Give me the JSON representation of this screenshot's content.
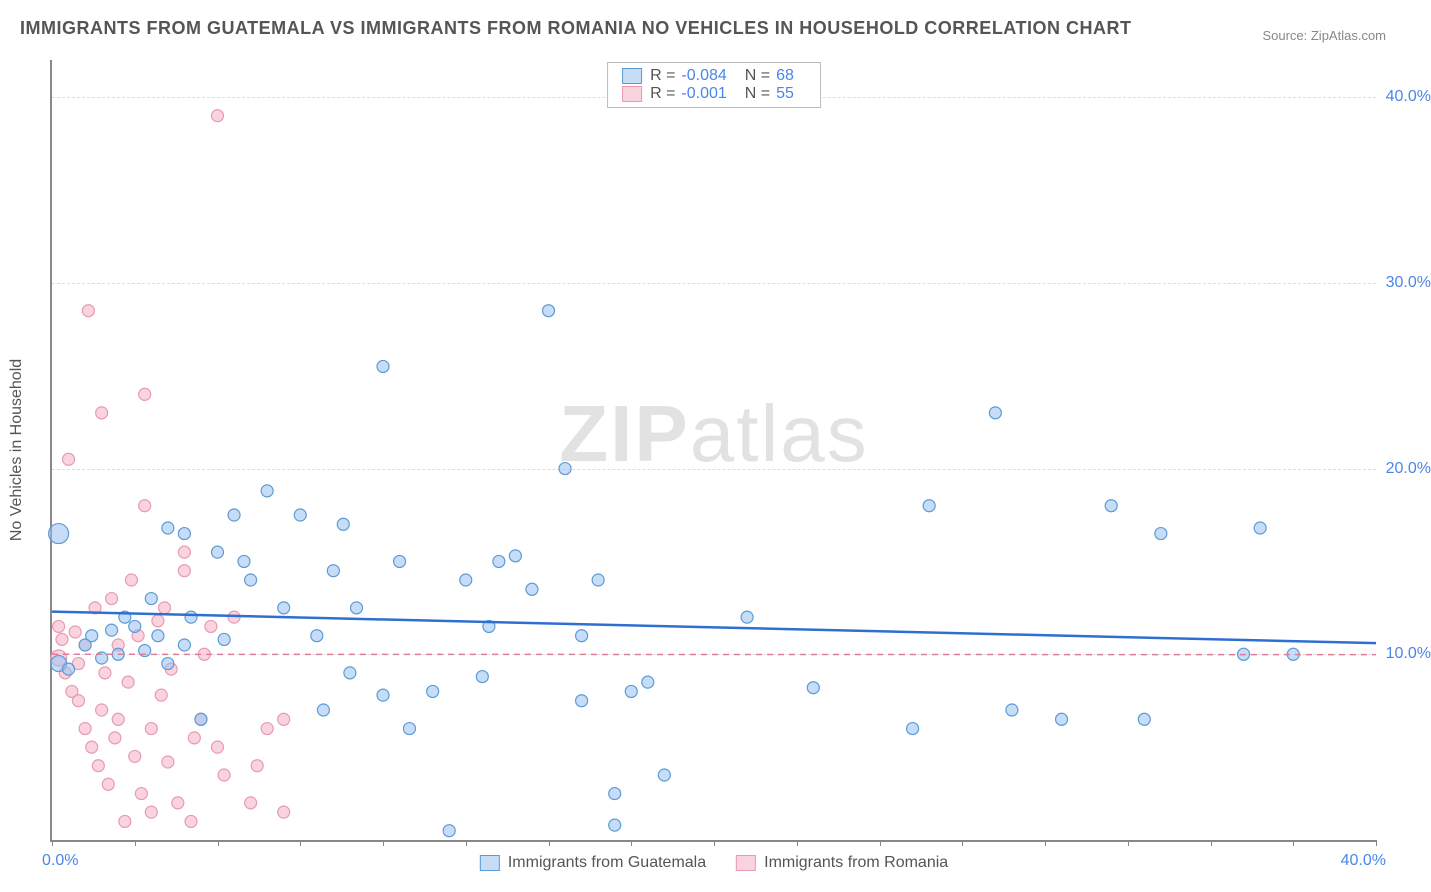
{
  "title": "IMMIGRANTS FROM GUATEMALA VS IMMIGRANTS FROM ROMANIA NO VEHICLES IN HOUSEHOLD CORRELATION CHART",
  "source": "Source: ZipAtlas.com",
  "watermark_a": "ZIP",
  "watermark_b": "atlas",
  "y_axis_label": "No Vehicles in Household",
  "chart": {
    "type": "scatter",
    "xlim": [
      0,
      40
    ],
    "ylim": [
      0,
      42
    ],
    "x_tick_left": "0.0%",
    "x_tick_right": "40.0%",
    "x_minor_ticks": [
      0,
      2.5,
      5,
      7.5,
      10,
      12.5,
      15,
      17.5,
      20,
      22.5,
      25,
      27.5,
      30,
      32.5,
      35,
      37.5,
      40
    ],
    "y_gridlines": [
      {
        "v": 10,
        "label": "10.0%"
      },
      {
        "v": 20,
        "label": "20.0%"
      },
      {
        "v": 30,
        "label": "30.0%"
      },
      {
        "v": 40,
        "label": "40.0%"
      }
    ],
    "series": [
      {
        "name": "Immigrants from Guatemala",
        "color_fill": "rgba(153,193,241,0.55)",
        "color_stroke": "#5b9bd5",
        "trend_color": "#2f6fd0",
        "trend_style": "solid",
        "R": "-0.084",
        "N": "68",
        "trend": {
          "y_at_x0": 12.3,
          "y_at_x40": 10.6
        },
        "points": [
          [
            0.2,
            16.5,
            10
          ],
          [
            0.2,
            9.5,
            8
          ],
          [
            0.5,
            9.2,
            6
          ],
          [
            1.0,
            10.5,
            6
          ],
          [
            1.2,
            11.0,
            6
          ],
          [
            1.5,
            9.8,
            6
          ],
          [
            1.8,
            11.3,
            6
          ],
          [
            2.0,
            10.0,
            6
          ],
          [
            2.2,
            12.0,
            6
          ],
          [
            2.5,
            11.5,
            6
          ],
          [
            2.8,
            10.2,
            6
          ],
          [
            3.0,
            13.0,
            6
          ],
          [
            3.2,
            11.0,
            6
          ],
          [
            3.5,
            16.8,
            6
          ],
          [
            3.5,
            9.5,
            6
          ],
          [
            4.0,
            10.5,
            6
          ],
          [
            4.0,
            16.5,
            6
          ],
          [
            4.2,
            12.0,
            6
          ],
          [
            4.5,
            6.5,
            6
          ],
          [
            5.0,
            15.5,
            6
          ],
          [
            5.2,
            10.8,
            6
          ],
          [
            5.5,
            17.5,
            6
          ],
          [
            6.0,
            14.0,
            6
          ],
          [
            6.5,
            18.8,
            6
          ],
          [
            7.0,
            12.5,
            6
          ],
          [
            7.5,
            17.5,
            6
          ],
          [
            8.0,
            11.0,
            6
          ],
          [
            8.2,
            7.0,
            6
          ],
          [
            8.5,
            14.5,
            6
          ],
          [
            8.8,
            17.0,
            6
          ],
          [
            9.0,
            9.0,
            6
          ],
          [
            9.2,
            12.5,
            6
          ],
          [
            10.0,
            25.5,
            6
          ],
          [
            10.0,
            7.8,
            6
          ],
          [
            10.5,
            15.0,
            6
          ],
          [
            11.5,
            8.0,
            6
          ],
          [
            12.0,
            0.5,
            6
          ],
          [
            12.5,
            14.0,
            6
          ],
          [
            13.0,
            8.8,
            6
          ],
          [
            13.2,
            11.5,
            6
          ],
          [
            13.5,
            15.0,
            6
          ],
          [
            14.0,
            15.3,
            6
          ],
          [
            14.5,
            13.5,
            6
          ],
          [
            15.0,
            28.5,
            6
          ],
          [
            15.5,
            20.0,
            6
          ],
          [
            16.0,
            11.0,
            6
          ],
          [
            16.0,
            7.5,
            6
          ],
          [
            16.5,
            14.0,
            6
          ],
          [
            17.0,
            2.5,
            6
          ],
          [
            17.0,
            0.8,
            6
          ],
          [
            17.5,
            8.0,
            6
          ],
          [
            18.0,
            8.5,
            6
          ],
          [
            18.5,
            3.5,
            6
          ],
          [
            21.0,
            12.0,
            6
          ],
          [
            23.0,
            8.2,
            6
          ],
          [
            26.0,
            6.0,
            6
          ],
          [
            26.5,
            18.0,
            6
          ],
          [
            28.5,
            23.0,
            6
          ],
          [
            29.0,
            7.0,
            6
          ],
          [
            30.5,
            6.5,
            6
          ],
          [
            32.0,
            18.0,
            6
          ],
          [
            33.0,
            6.5,
            6
          ],
          [
            33.5,
            16.5,
            6
          ],
          [
            36.0,
            10.0,
            6
          ],
          [
            36.5,
            16.8,
            6
          ],
          [
            37.5,
            10.0,
            6
          ],
          [
            10.8,
            6.0,
            6
          ],
          [
            5.8,
            15.0,
            6
          ]
        ]
      },
      {
        "name": "Immigrants from Romania",
        "color_fill": "rgba(244,177,196,0.55)",
        "color_stroke": "#e89ab0",
        "trend_color": "#e07d9a",
        "trend_style": "dashed",
        "R": "-0.001",
        "N": "55",
        "trend": {
          "y_at_x0": 10.0,
          "y_at_x40": 9.98
        },
        "points": [
          [
            0.2,
            9.8,
            8
          ],
          [
            0.2,
            11.5,
            6
          ],
          [
            0.3,
            10.8,
            6
          ],
          [
            0.4,
            9.0,
            6
          ],
          [
            0.5,
            20.5,
            6
          ],
          [
            0.6,
            8.0,
            6
          ],
          [
            0.7,
            11.2,
            6
          ],
          [
            0.8,
            7.5,
            6
          ],
          [
            0.8,
            9.5,
            6
          ],
          [
            1.0,
            6.0,
            6
          ],
          [
            1.0,
            10.5,
            6
          ],
          [
            1.1,
            28.5,
            6
          ],
          [
            1.2,
            5.0,
            6
          ],
          [
            1.3,
            12.5,
            6
          ],
          [
            1.4,
            4.0,
            6
          ],
          [
            1.5,
            23.0,
            6
          ],
          [
            1.5,
            7.0,
            6
          ],
          [
            1.6,
            9.0,
            6
          ],
          [
            1.7,
            3.0,
            6
          ],
          [
            1.8,
            13.0,
            6
          ],
          [
            1.9,
            5.5,
            6
          ],
          [
            2.0,
            10.5,
            6
          ],
          [
            2.0,
            6.5,
            6
          ],
          [
            2.2,
            1.0,
            6
          ],
          [
            2.3,
            8.5,
            6
          ],
          [
            2.4,
            14.0,
            6
          ],
          [
            2.5,
            4.5,
            6
          ],
          [
            2.6,
            11.0,
            6
          ],
          [
            2.7,
            2.5,
            6
          ],
          [
            2.8,
            18.0,
            6
          ],
          [
            2.8,
            24.0,
            6
          ],
          [
            3.0,
            6.0,
            6
          ],
          [
            3.0,
            1.5,
            6
          ],
          [
            3.2,
            11.8,
            6
          ],
          [
            3.3,
            7.8,
            6
          ],
          [
            3.4,
            12.5,
            6
          ],
          [
            3.5,
            4.2,
            6
          ],
          [
            3.6,
            9.2,
            6
          ],
          [
            3.8,
            2.0,
            6
          ],
          [
            4.0,
            14.5,
            6
          ],
          [
            4.0,
            15.5,
            6
          ],
          [
            4.2,
            1.0,
            6
          ],
          [
            4.3,
            5.5,
            6
          ],
          [
            4.5,
            6.5,
            6
          ],
          [
            4.6,
            10.0,
            6
          ],
          [
            4.8,
            11.5,
            6
          ],
          [
            5.0,
            5.0,
            6
          ],
          [
            5.0,
            39.0,
            6
          ],
          [
            5.2,
            3.5,
            6
          ],
          [
            5.5,
            12.0,
            6
          ],
          [
            6.0,
            2.0,
            6
          ],
          [
            6.2,
            4.0,
            6
          ],
          [
            6.5,
            6.0,
            6
          ],
          [
            7.0,
            1.5,
            6
          ],
          [
            7.0,
            6.5,
            6
          ]
        ]
      }
    ]
  }
}
